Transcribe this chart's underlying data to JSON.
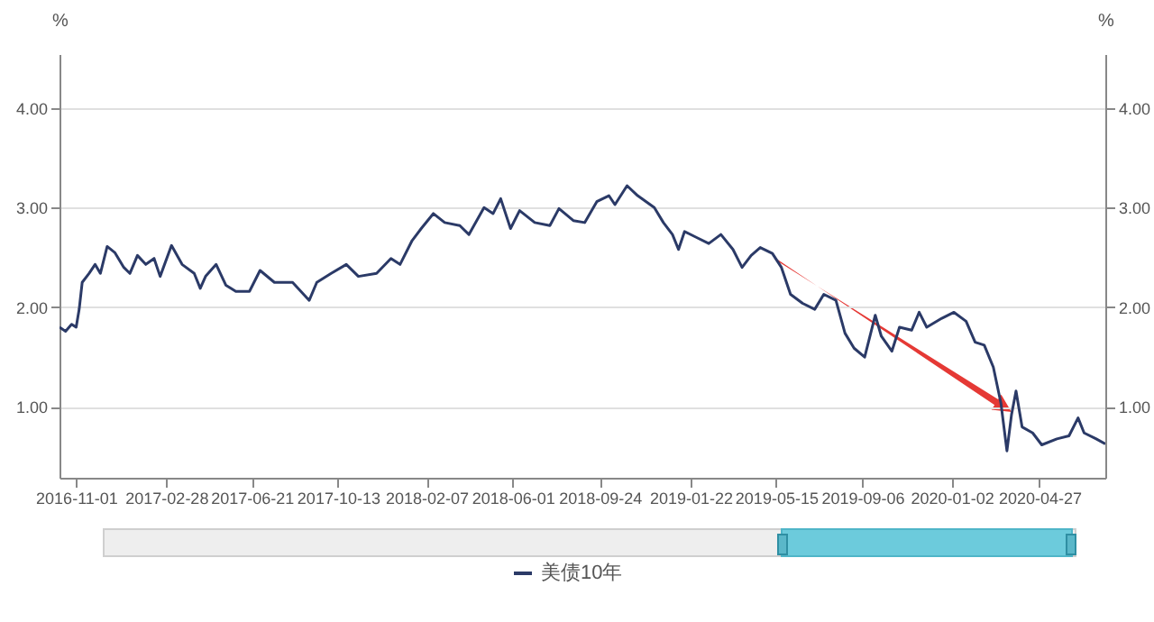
{
  "chart_data": {
    "type": "line",
    "x": [
      "2016-10-10",
      "2016-10-18",
      "2016-10-26",
      "2016-11-01",
      "2016-11-05",
      "2016-11-09",
      "2016-11-18",
      "2016-11-26",
      "2016-12-03",
      "2016-12-12",
      "2016-12-22",
      "2017-01-03",
      "2017-01-11",
      "2017-01-21",
      "2017-02-01",
      "2017-02-12",
      "2017-02-20",
      "2017-03-07",
      "2017-03-21",
      "2017-04-06",
      "2017-04-14",
      "2017-04-21",
      "2017-05-05",
      "2017-05-18",
      "2017-05-31",
      "2017-06-18",
      "2017-07-02",
      "2017-07-21",
      "2017-08-14",
      "2017-09-05",
      "2017-09-15",
      "2017-10-04",
      "2017-10-24",
      "2017-11-09",
      "2017-12-03",
      "2017-12-22",
      "2018-01-03",
      "2018-01-19",
      "2018-01-31",
      "2018-02-16",
      "2018-03-03",
      "2018-03-23",
      "2018-04-04",
      "2018-04-24",
      "2018-05-06",
      "2018-05-16",
      "2018-05-29",
      "2018-06-10",
      "2018-06-30",
      "2018-07-20",
      "2018-08-01",
      "2018-08-20",
      "2018-09-04",
      "2018-09-20",
      "2018-10-06",
      "2018-10-14",
      "2018-10-30",
      "2018-11-13",
      "2018-12-05",
      "2018-12-17",
      "2018-12-29",
      "2019-01-06",
      "2019-01-14",
      "2019-01-30",
      "2019-02-15",
      "2019-03-03",
      "2019-03-19",
      "2019-03-31",
      "2019-04-12",
      "2019-04-24",
      "2019-05-10",
      "2019-05-22",
      "2019-06-03",
      "2019-06-19",
      "2019-07-05",
      "2019-07-17",
      "2019-08-02",
      "2019-08-14",
      "2019-08-26",
      "2019-09-09",
      "2019-09-23",
      "2019-10-01",
      "2019-10-15",
      "2019-10-25",
      "2019-11-10",
      "2019-11-20",
      "2019-11-30",
      "2019-12-20",
      "2020-01-05",
      "2020-01-21",
      "2020-02-02",
      "2020-02-14",
      "2020-02-26",
      "2020-03-07",
      "2020-03-15",
      "2020-03-21",
      "2020-03-27",
      "2020-04-04",
      "2020-04-18",
      "2020-04-30",
      "2020-05-20",
      "2020-06-05",
      "2020-06-17",
      "2020-06-25",
      "2020-07-11",
      "2020-07-23"
    ],
    "series": [
      {
        "name": "美债10年",
        "color": "#2b3a67",
        "values": [
          1.8,
          1.76,
          1.83,
          1.8,
          1.98,
          2.25,
          2.34,
          2.43,
          2.34,
          2.61,
          2.55,
          2.4,
          2.34,
          2.52,
          2.43,
          2.49,
          2.31,
          2.62,
          2.43,
          2.34,
          2.19,
          2.31,
          2.43,
          2.22,
          2.16,
          2.16,
          2.37,
          2.25,
          2.25,
          2.07,
          2.25,
          2.34,
          2.43,
          2.31,
          2.34,
          2.49,
          2.43,
          2.67,
          2.79,
          2.94,
          2.85,
          2.82,
          2.73,
          3.0,
          2.94,
          3.09,
          2.79,
          2.97,
          2.85,
          2.82,
          2.99,
          2.87,
          2.85,
          3.06,
          3.12,
          3.03,
          3.22,
          3.12,
          3.0,
          2.85,
          2.73,
          2.58,
          2.76,
          2.7,
          2.64,
          2.73,
          2.58,
          2.4,
          2.52,
          2.6,
          2.54,
          2.4,
          2.13,
          2.04,
          1.98,
          2.13,
          2.07,
          1.74,
          1.59,
          1.5,
          1.92,
          1.71,
          1.56,
          1.8,
          1.77,
          1.95,
          1.8,
          1.89,
          1.95,
          1.86,
          1.65,
          1.62,
          1.4,
          1.04,
          0.56,
          0.92,
          1.16,
          0.8,
          0.74,
          0.62,
          0.68,
          0.71,
          0.89,
          0.74,
          0.68,
          0.63
        ]
      }
    ],
    "xlim": [
      "2016-10-10",
      "2020-07-23"
    ],
    "xticks": [
      "2016-11-01",
      "2017-02-28",
      "2017-06-21",
      "2017-10-13",
      "2018-02-07",
      "2018-06-01",
      "2018-09-24",
      "2019-01-22",
      "2019-05-15",
      "2019-09-06",
      "2020-01-02",
      "2020-04-27"
    ],
    "ylim": [
      0.29,
      4.54
    ],
    "yticks": [
      {
        "value": 1,
        "label": "1.00"
      },
      {
        "value": 2,
        "label": "2.00"
      },
      {
        "value": 3,
        "label": "3.00"
      },
      {
        "value": 4,
        "label": "4.00"
      }
    ],
    "y2lim": [
      0.29,
      4.54
    ],
    "y2ticks": [
      {
        "value": 1,
        "label": "1.00"
      },
      {
        "value": 2,
        "label": "2.00"
      },
      {
        "value": 3,
        "label": "3.00"
      },
      {
        "value": 4,
        "label": "4.00"
      }
    ],
    "ylabel": "%",
    "y2label": "%",
    "grid": "y",
    "legend": "bottom",
    "marker": "none",
    "line_style": "solid"
  }
}
